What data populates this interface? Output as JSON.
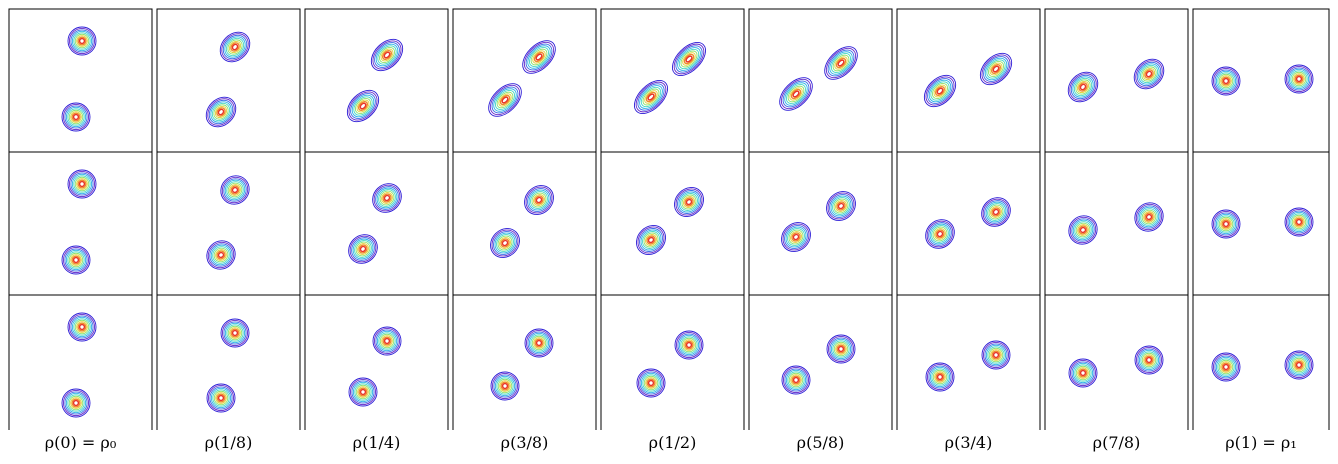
{
  "figure": {
    "columns": [
      {
        "label": "ρ(0) = ρ₀",
        "t": 0
      },
      {
        "label": "ρ(1/8)",
        "t": 0.125
      },
      {
        "label": "ρ(1/4)",
        "t": 0.25
      },
      {
        "label": "ρ(3/8)",
        "t": 0.375
      },
      {
        "label": "ρ(1/2)",
        "t": 0.5
      },
      {
        "label": "ρ(5/8)",
        "t": 0.625
      },
      {
        "label": "ρ(3/4)",
        "t": 0.75
      },
      {
        "label": "ρ(7/8)",
        "t": 0.875
      },
      {
        "label": "ρ(1) = ρ₁",
        "t": 1
      }
    ],
    "rows": 3,
    "contour_colors": [
      "#2b1bd6",
      "#6a2cc9",
      "#3a6ee8",
      "#2fb4e8",
      "#49d8c4",
      "#8fe36b",
      "#e6d23a",
      "#f08a2c",
      "#e8352a"
    ]
  }
}
